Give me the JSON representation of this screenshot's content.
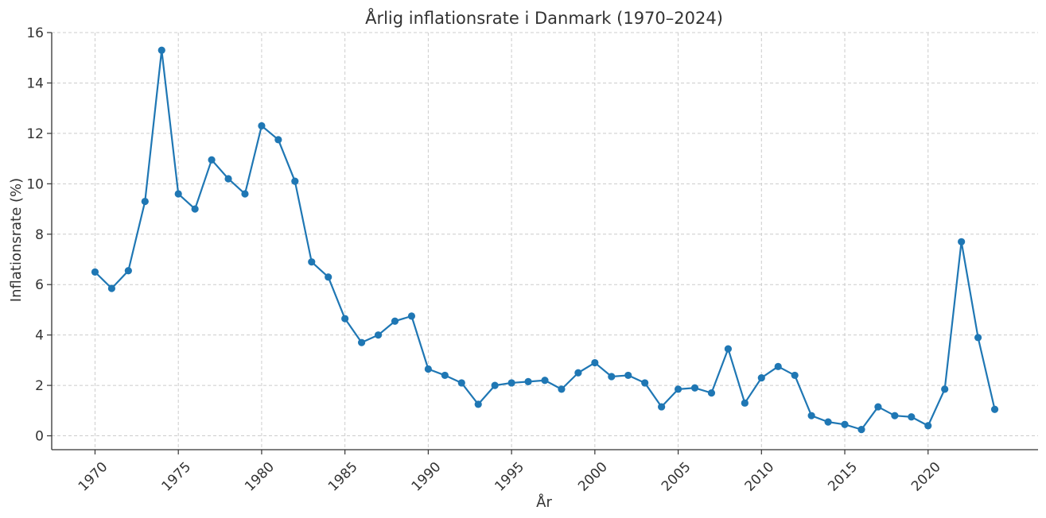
{
  "chart_data": {
    "type": "line",
    "title": "Årlig inflationsrate i Danmark (1970–2024)",
    "xlabel": "År",
    "ylabel": "Inflationsrate (%)",
    "xlim": [
      1967.4,
      2026.6
    ],
    "ylim": [
      -0.55,
      16
    ],
    "x_ticks": [
      1970,
      1975,
      1980,
      1985,
      1990,
      1995,
      2000,
      2005,
      2010,
      2015,
      2020
    ],
    "y_ticks": [
      0,
      2,
      4,
      6,
      8,
      10,
      12,
      14,
      16
    ],
    "grid": true,
    "color": "#1f77b4",
    "series": [
      {
        "x": [
          1970,
          1971,
          1972,
          1973,
          1974,
          1975,
          1976,
          1977,
          1978,
          1979,
          1980,
          1981,
          1982,
          1983,
          1984,
          1985,
          1986,
          1987,
          1988,
          1989,
          1990,
          1991,
          1992,
          1993,
          1994,
          1995,
          1996,
          1997,
          1998,
          1999,
          2000,
          2001,
          2002,
          2003,
          2004,
          2005,
          2006,
          2007,
          2008,
          2009,
          2010,
          2011,
          2012,
          2013,
          2014,
          2015,
          2016,
          2017,
          2018,
          2019,
          2020,
          2021,
          2022,
          2023,
          2024
        ],
        "values": [
          6.5,
          5.85,
          6.55,
          9.3,
          15.3,
          9.6,
          9.0,
          10.95,
          10.2,
          9.6,
          12.3,
          11.75,
          10.1,
          6.9,
          6.3,
          4.65,
          3.7,
          4.0,
          4.55,
          4.75,
          2.65,
          2.4,
          2.1,
          1.25,
          2.0,
          2.1,
          2.15,
          2.2,
          1.85,
          2.5,
          2.9,
          2.35,
          2.4,
          2.1,
          1.15,
          1.85,
          1.9,
          1.7,
          3.45,
          1.3,
          2.3,
          2.75,
          2.4,
          0.8,
          0.55,
          0.45,
          0.25,
          1.15,
          0.8,
          0.75,
          0.4,
          1.85,
          7.7,
          3.9,
          1.05
        ]
      }
    ]
  }
}
